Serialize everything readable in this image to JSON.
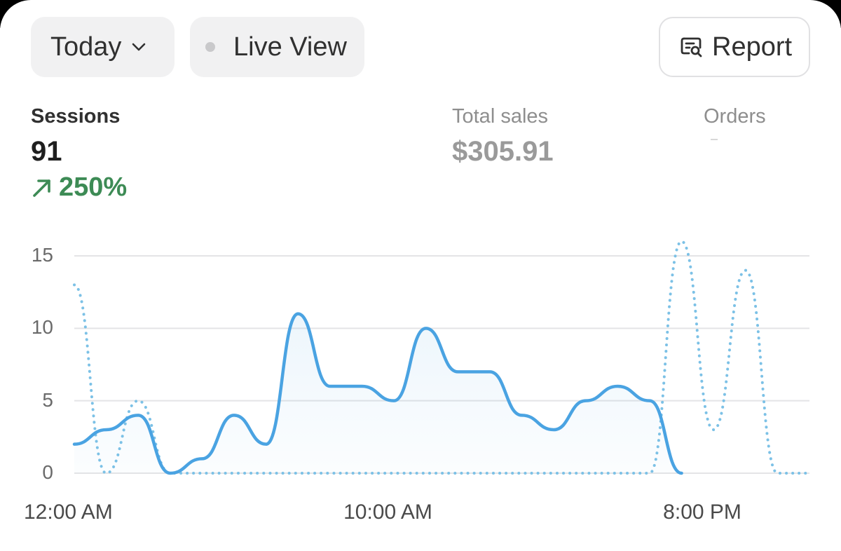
{
  "toolbar": {
    "date_label": "Today",
    "live_label": "Live View",
    "report_label": "Report"
  },
  "metrics": {
    "sessions": {
      "label": "Sessions",
      "value": "91",
      "change": "250%"
    },
    "total_sales": {
      "label": "Total sales",
      "value": "$305.91"
    },
    "orders": {
      "label": "Orders"
    }
  },
  "colors": {
    "series": "#4aa3e2",
    "comparison": "#7cc1e6",
    "positive": "#3d8b55"
  },
  "icons": {
    "date_dropdown": "chevron-down-icon",
    "live_status": "live-dot-icon",
    "report": "report-search-icon",
    "change": "arrow-up-right-icon"
  },
  "chart_data": {
    "type": "line",
    "ylim": [
      0,
      15
    ],
    "yticks": [
      "0",
      "5",
      "10",
      "15"
    ],
    "xtick_labels": [
      "12:00 AM",
      "10:00 AM",
      "8:00 PM"
    ],
    "x": [
      "12:00 AM",
      "1:00 AM",
      "2:00 AM",
      "3:00 AM",
      "4:00 AM",
      "5:00 AM",
      "6:00 AM",
      "7:00 AM",
      "8:00 AM",
      "9:00 AM",
      "10:00 AM",
      "11:00 AM",
      "12:00 PM",
      "1:00 PM",
      "2:00 PM",
      "3:00 PM",
      "4:00 PM",
      "5:00 PM",
      "6:00 PM",
      "7:00 PM",
      "8:00 PM",
      "9:00 PM",
      "10:00 PM",
      "11:00 PM"
    ],
    "grid": true,
    "series": [
      {
        "values": [
          2,
          3,
          4,
          0,
          1,
          4,
          2,
          11,
          6,
          6,
          5,
          10,
          7,
          7,
          4,
          3,
          5,
          6,
          5,
          0,
          null,
          null,
          null,
          null
        ]
      },
      {
        "values": [
          13,
          0,
          5,
          0,
          0,
          0,
          0,
          0,
          0,
          0,
          0,
          0,
          0,
          0,
          0,
          0,
          0,
          0,
          0,
          16,
          3,
          14,
          0,
          0
        ]
      }
    ]
  }
}
